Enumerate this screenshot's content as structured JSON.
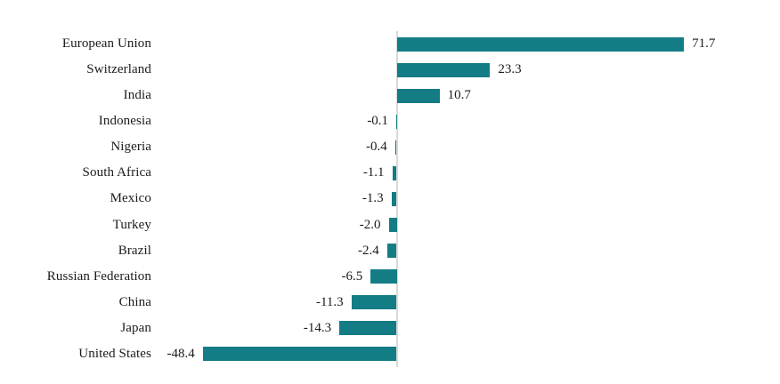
{
  "chart_data": {
    "type": "bar",
    "orientation": "horizontal",
    "title": "",
    "xlabel": "",
    "ylabel": "",
    "categories": [
      "European Union",
      "Switzerland",
      "India",
      "Indonesia",
      "Nigeria",
      "South Africa",
      "Mexico",
      "Turkey",
      "Brazil",
      "Russian Federation",
      "China",
      "Japan",
      "United States"
    ],
    "values": [
      71.7,
      23.3,
      10.7,
      -0.1,
      -0.4,
      -1.1,
      -1.3,
      -2.0,
      -2.4,
      -6.5,
      -11.3,
      -14.3,
      -48.4
    ],
    "value_labels": [
      "71.7",
      "23.3",
      "10.7",
      "-0.1",
      "-0.4",
      "-1.1",
      "-1.3",
      "-2.0",
      "-2.4",
      "-6.5",
      "-11.3",
      "-14.3",
      "-48.4"
    ],
    "xlim": [
      -55,
      95
    ],
    "grid": false,
    "legend": false,
    "colors": {
      "bar": "#147C85",
      "axis_line": "#D9D9D9",
      "text": "#1B1B1B"
    }
  }
}
